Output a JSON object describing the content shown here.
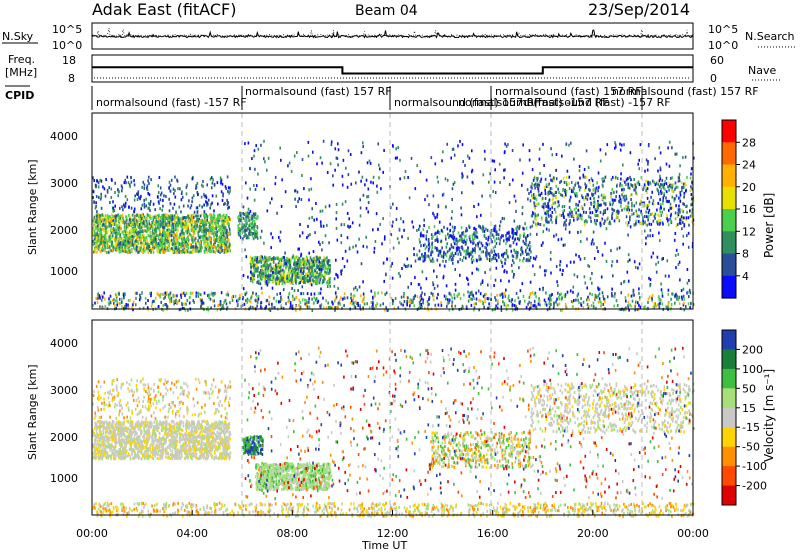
{
  "header": {
    "station": "Adak East (fitACF)",
    "beam": "Beam 04",
    "date": "23/Sep/2014"
  },
  "noise_panel": {
    "left_label": "N.Sky",
    "right_label": "N.Search",
    "left_ticks": [
      "10^5",
      "10^0"
    ],
    "right_ticks": [
      "10^5",
      "10^0"
    ]
  },
  "freq_panel": {
    "left_label_1": "Freq.",
    "left_label_2": "[MHz]",
    "left_ticks": [
      "18",
      "8"
    ],
    "right_label": "Nave",
    "right_ticks": [
      "60",
      "0"
    ]
  },
  "cpid_panel": {
    "label": "CPID",
    "entries": [
      "normalsound (fast) -157 RF",
      "normalsound (fast) 157 RF",
      "normalsound (fast) 157 RF",
      "normalsound (fast) -157 RF",
      "normalsound (fast) 157 RF",
      "normalsound (fast) -157 RF",
      "normalsound (fast) 157 RF"
    ]
  },
  "power_colorbar": {
    "label": "Power [dB]",
    "ticks": [
      "28",
      "24",
      "20",
      "16",
      "12",
      "8",
      "4"
    ],
    "colors": [
      "#ff0000",
      "#ff6a00",
      "#ffb000",
      "#e8e000",
      "#4ccf4c",
      "#2f8f5f",
      "#2a4f9a",
      "#0a0aff"
    ]
  },
  "velocity_colorbar": {
    "label": "Velocity [m s⁻¹]",
    "ticks": [
      "200",
      "100",
      "50",
      "15",
      "-15",
      "-50",
      "-100",
      "-200"
    ],
    "colors": [
      "#1f3fae",
      "#1a7f3a",
      "#3fbf3f",
      "#a7e07a",
      "#c9c9c9",
      "#ffd400",
      "#ff9000",
      "#ff4a00",
      "#e00000"
    ]
  },
  "chart_data": [
    {
      "type": "line",
      "panel": "noise",
      "series": [
        {
          "name": "N.Sky",
          "style": "solid",
          "level_exp": 2.4
        },
        {
          "name": "N.Search",
          "style": "dotted",
          "level_exp": 2.6
        }
      ],
      "ylim": [
        0,
        5
      ]
    },
    {
      "type": "line",
      "panel": "frequency",
      "series": [
        {
          "name": "Freq",
          "points": [
            [
              0,
              14
            ],
            [
              10,
              14
            ],
            [
              10,
              10.5
            ],
            [
              18,
              10.5
            ],
            [
              18,
              14
            ],
            [
              24,
              14
            ]
          ]
        },
        {
          "name": "Nave",
          "style": "dotted",
          "points": [
            [
              0,
              2
            ],
            [
              24,
              2
            ]
          ]
        }
      ],
      "ylim_left": [
        8,
        18
      ],
      "ylim_right": [
        0,
        60
      ]
    },
    {
      "type": "heatmap",
      "panel": "power",
      "ylabel": "Slant Range [km]",
      "yticks": [
        "4000",
        "3000",
        "2000",
        "1000"
      ],
      "ylim": [
        200,
        4600
      ],
      "xlim": [
        0,
        24
      ],
      "colorbar": "Power [dB]"
    },
    {
      "type": "heatmap",
      "panel": "velocity",
      "ylabel": "Slant Range [km]",
      "xlabel": "Time UT",
      "xticks": [
        "00:00",
        "04:00",
        "08:00",
        "12:00",
        "16:00",
        "20:00",
        "00:00"
      ],
      "yticks": [
        "4000",
        "3000",
        "2000",
        "1000"
      ],
      "ylim": [
        200,
        4600
      ],
      "xlim": [
        0,
        24
      ],
      "colorbar": "Velocity [m s⁻¹]"
    }
  ]
}
